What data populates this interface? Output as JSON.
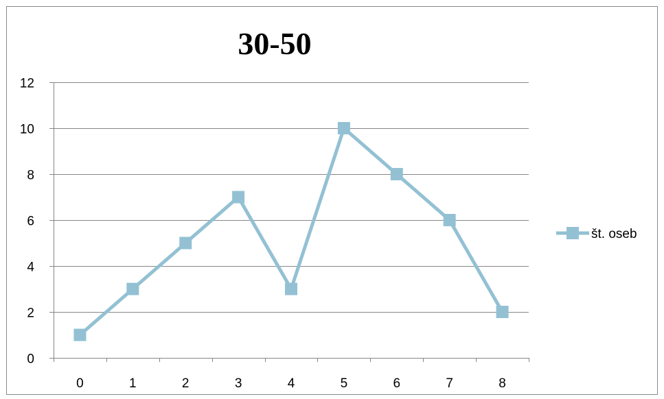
{
  "chart_data": {
    "type": "line",
    "title": "30-50",
    "xlabel": "",
    "ylabel": "",
    "x": [
      0,
      1,
      2,
      3,
      4,
      5,
      6,
      7,
      8
    ],
    "x_tick_labels": [
      "0",
      "1",
      "2",
      "3",
      "4",
      "5",
      "6",
      "7",
      "8"
    ],
    "y_tick_labels": [
      "0",
      "2",
      "4",
      "6",
      "8",
      "10",
      "12"
    ],
    "ylim": [
      0,
      12
    ],
    "y_ticks": [
      0,
      2,
      4,
      6,
      8,
      10,
      12
    ],
    "grid": true,
    "legend_position": "right",
    "series": [
      {
        "name": "št. oseb",
        "values": [
          1,
          3,
          5,
          7,
          3,
          10,
          8,
          6,
          2
        ],
        "color": "#93C1D3",
        "marker": "square"
      }
    ]
  }
}
